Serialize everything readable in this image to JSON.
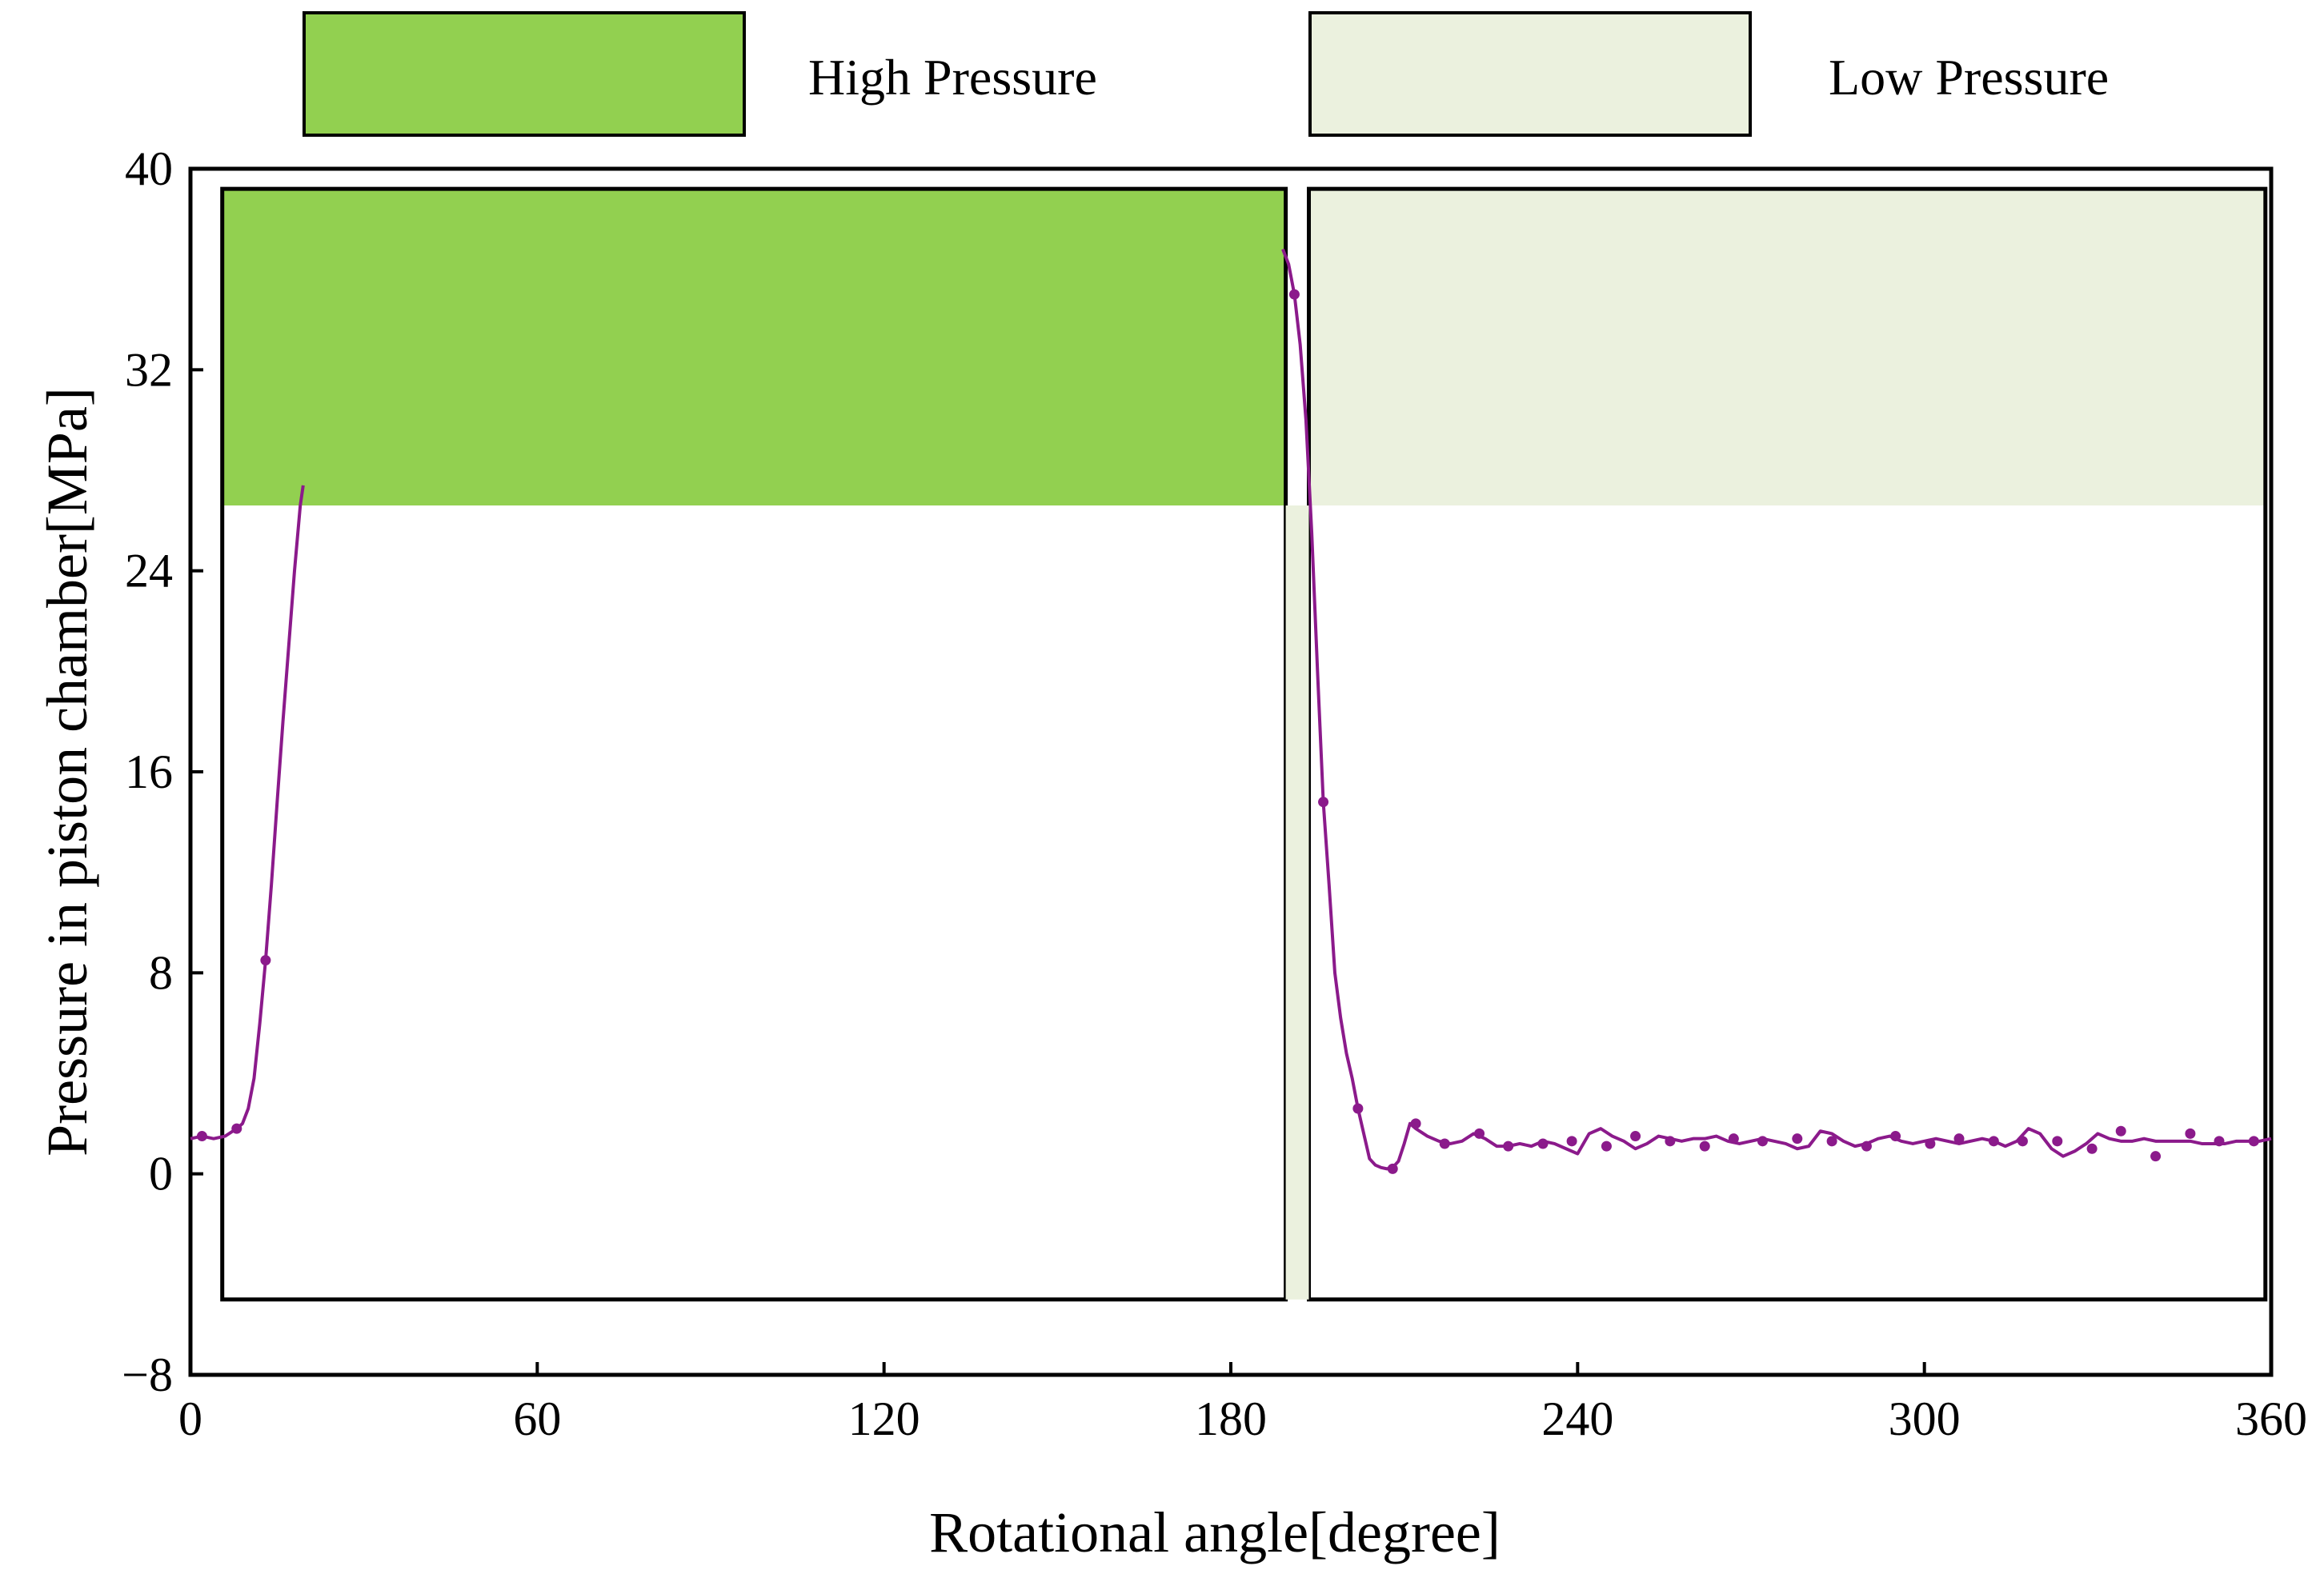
{
  "chart_data": {
    "type": "line",
    "title": "",
    "xlabel": "Rotational angle[degree]",
    "ylabel": "Pressure in piston chamber[MPa]",
    "xlim": [
      0,
      360
    ],
    "ylim": [
      -8,
      40
    ],
    "xticks": [
      0,
      60,
      120,
      180,
      240,
      300,
      360
    ],
    "yticks": [
      -8,
      0,
      8,
      16,
      24,
      32,
      40
    ],
    "xtick_labels": [
      "0",
      "60",
      "120",
      "180",
      "240",
      "300",
      "360"
    ],
    "ytick_labels": [
      "−8",
      "0",
      "8",
      "16",
      "24",
      "32",
      "40"
    ],
    "legend": [
      {
        "label": "High Pressure",
        "color": "#92d050"
      },
      {
        "label": "Low Pressure",
        "color": "#ebf1de"
      }
    ],
    "regions": [
      {
        "name": "High Pressure",
        "x": [
          5.5,
          189.5
        ],
        "y_top": 39.2,
        "y_fill_bottom": 26.6,
        "y_bottom": -5,
        "color": "#92d050",
        "border": true
      },
      {
        "name": "Low Pressure",
        "x": [
          193.5,
          359
        ],
        "y_top": 39.2,
        "y_fill_bottom": 26.6,
        "y_bottom": -5,
        "color": "#ebf1de",
        "border": true
      },
      {
        "name": "Low Pressure strip",
        "x": [
          189.5,
          193.5
        ],
        "y_top": 26.6,
        "y_bottom": -5,
        "color": "#ebf1de",
        "border": false
      }
    ],
    "series": [
      {
        "name": "Pressure",
        "color": "#8b1a8b",
        "x": [
          0,
          2,
          4,
          6,
          8,
          9,
          10,
          11,
          12,
          13,
          14,
          15,
          16,
          17,
          18,
          19,
          19.5,
          189,
          190,
          191,
          192,
          193,
          194,
          195,
          196,
          197,
          198,
          199,
          200,
          201,
          202,
          203,
          204,
          205,
          206,
          207,
          208,
          209,
          210,
          211,
          212,
          214,
          216,
          218,
          220,
          222,
          224,
          226,
          228,
          230,
          232,
          234,
          236,
          238,
          240,
          242,
          244,
          246,
          248,
          250,
          252,
          254,
          256,
          258,
          260,
          262,
          264,
          266,
          268,
          270,
          272,
          274,
          276,
          278,
          280,
          282,
          284,
          286,
          288,
          290,
          292,
          294,
          296,
          298,
          300,
          302,
          304,
          306,
          308,
          310,
          312,
          314,
          316,
          318,
          320,
          322,
          324,
          326,
          328,
          330,
          332,
          334,
          336,
          338,
          340,
          342,
          344,
          346,
          348,
          350,
          352,
          354,
          356,
          358,
          360
        ],
        "values": [
          1.4,
          1.5,
          1.4,
          1.5,
          1.8,
          2.0,
          2.6,
          3.8,
          6.0,
          8.5,
          11.5,
          14.8,
          18.0,
          21.0,
          24.0,
          26.6,
          27.4,
          36.8,
          36.2,
          35.0,
          33.0,
          30.0,
          25.5,
          20.0,
          14.8,
          11.5,
          8.0,
          6.2,
          4.8,
          3.8,
          2.6,
          1.6,
          0.6,
          0.35,
          0.25,
          0.2,
          0.25,
          0.5,
          1.2,
          2.0,
          1.8,
          1.5,
          1.3,
          1.2,
          1.3,
          1.6,
          1.4,
          1.1,
          1.1,
          1.2,
          1.1,
          1.3,
          1.2,
          1.0,
          0.8,
          1.6,
          1.8,
          1.5,
          1.3,
          1.0,
          1.2,
          1.5,
          1.4,
          1.3,
          1.4,
          1.4,
          1.5,
          1.3,
          1.2,
          1.3,
          1.4,
          1.3,
          1.2,
          1.0,
          1.1,
          1.7,
          1.6,
          1.3,
          1.1,
          1.2,
          1.4,
          1.5,
          1.3,
          1.2,
          1.3,
          1.4,
          1.3,
          1.2,
          1.3,
          1.4,
          1.3,
          1.1,
          1.3,
          1.8,
          1.6,
          1.0,
          0.7,
          0.9,
          1.2,
          1.6,
          1.4,
          1.3,
          1.3,
          1.4,
          1.3,
          1.3,
          1.3,
          1.3,
          1.2,
          1.2,
          1.2,
          1.3,
          1.3,
          1.3,
          1.4
        ],
        "marker_x": [
          2,
          8,
          13,
          191,
          196,
          202,
          208,
          212,
          217,
          223,
          228,
          234,
          239,
          245,
          250,
          256,
          262,
          267,
          272,
          278,
          284,
          290,
          295,
          301,
          306,
          312,
          317,
          323,
          329,
          334,
          340,
          346,
          351,
          357
        ],
        "marker_values": [
          1.5,
          1.8,
          8.5,
          35.0,
          14.8,
          2.6,
          0.2,
          2.0,
          1.2,
          1.6,
          1.1,
          1.2,
          1.3,
          1.1,
          1.5,
          1.3,
          1.1,
          1.4,
          1.3,
          1.4,
          1.3,
          1.1,
          1.5,
          1.2,
          1.4,
          1.3,
          1.3,
          1.3,
          1.0,
          1.7,
          0.7,
          1.6,
          1.3,
          1.3
        ]
      }
    ]
  }
}
